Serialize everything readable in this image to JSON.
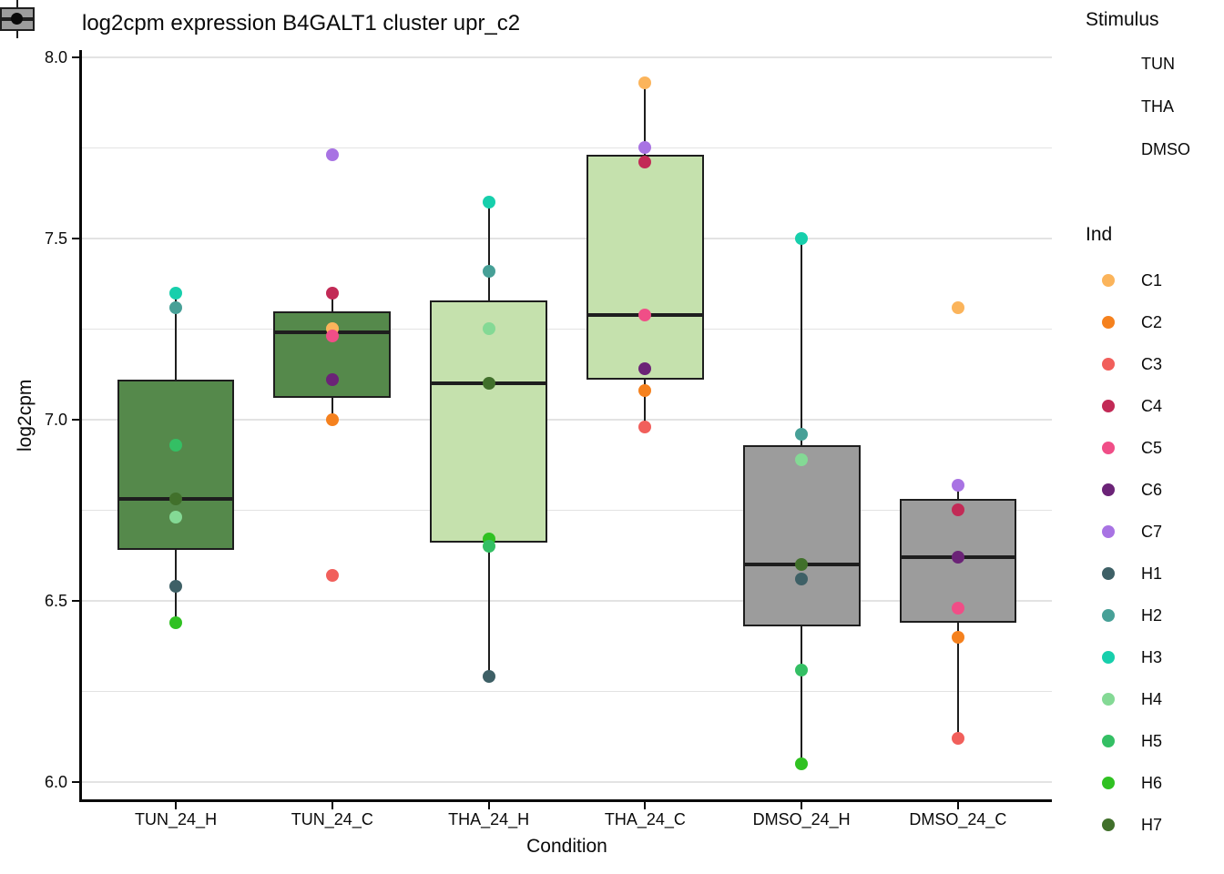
{
  "title": "log2cpm expression B4GALT1 cluster upr_c2",
  "chart_data": {
    "type": "boxplot",
    "title": "log2cpm expression B4GALT1 cluster upr_c2",
    "xlabel": "Condition",
    "ylabel": "log2cpm",
    "ylim": [
      5.95,
      8.02
    ],
    "yticks": [
      6.0,
      6.5,
      7.0,
      7.5,
      8.0
    ],
    "yticks_minor": [
      6.25,
      6.75,
      7.25,
      7.75
    ],
    "grid": "major-and-minor, light gray on white, black left/bottom axis lines",
    "legend_position": "right",
    "categories": [
      "TUN_24_H",
      "TUN_24_C",
      "THA_24_H",
      "THA_24_C",
      "DMSO_24_H",
      "DMSO_24_C"
    ],
    "groups": [
      {
        "condition": "TUN_24_H",
        "stimulus": "TUN",
        "box": {
          "whisker_low": 6.44,
          "q1": 6.64,
          "median": 6.78,
          "q3": 7.11,
          "whisker_high": 7.35
        },
        "points": [
          {
            "ind": "H3",
            "value": 7.35
          },
          {
            "ind": "H2",
            "value": 7.31
          },
          {
            "ind": "H5",
            "value": 6.93
          },
          {
            "ind": "H7",
            "value": 6.78
          },
          {
            "ind": "H4",
            "value": 6.73
          },
          {
            "ind": "H1",
            "value": 6.54
          },
          {
            "ind": "H6",
            "value": 6.44
          }
        ]
      },
      {
        "condition": "TUN_24_C",
        "stimulus": "TUN",
        "box": {
          "whisker_low": 7.0,
          "q1": 7.06,
          "median": 7.24,
          "q3": 7.3,
          "whisker_high": 7.35
        },
        "outliers": [
          "C7",
          "C3"
        ],
        "points": [
          {
            "ind": "C7",
            "value": 7.73
          },
          {
            "ind": "C4",
            "value": 7.35
          },
          {
            "ind": "C1",
            "value": 7.25
          },
          {
            "ind": "C5",
            "value": 7.23
          },
          {
            "ind": "C6",
            "value": 7.11
          },
          {
            "ind": "C2",
            "value": 7.0
          },
          {
            "ind": "C3",
            "value": 6.57
          }
        ]
      },
      {
        "condition": "THA_24_H",
        "stimulus": "THA",
        "box": {
          "whisker_low": 6.29,
          "q1": 6.66,
          "median": 7.1,
          "q3": 7.33,
          "whisker_high": 7.6
        },
        "points": [
          {
            "ind": "H3",
            "value": 7.6
          },
          {
            "ind": "H2",
            "value": 7.41
          },
          {
            "ind": "H4",
            "value": 7.25
          },
          {
            "ind": "H7",
            "value": 7.1
          },
          {
            "ind": "H6",
            "value": 6.67
          },
          {
            "ind": "H5",
            "value": 6.65
          },
          {
            "ind": "H1",
            "value": 6.29
          }
        ]
      },
      {
        "condition": "THA_24_C",
        "stimulus": "THA",
        "box": {
          "whisker_low": 6.98,
          "q1": 7.11,
          "median": 7.29,
          "q3": 7.73,
          "whisker_high": 7.93
        },
        "points": [
          {
            "ind": "C1",
            "value": 7.93
          },
          {
            "ind": "C7",
            "value": 7.75
          },
          {
            "ind": "C4",
            "value": 7.71
          },
          {
            "ind": "C5",
            "value": 7.29
          },
          {
            "ind": "C6",
            "value": 7.14
          },
          {
            "ind": "C2",
            "value": 7.08
          },
          {
            "ind": "C3",
            "value": 6.98
          }
        ]
      },
      {
        "condition": "DMSO_24_H",
        "stimulus": "DMSO",
        "box": {
          "whisker_low": 6.05,
          "q1": 6.43,
          "median": 6.6,
          "q3": 6.93,
          "whisker_high": 7.5
        },
        "points": [
          {
            "ind": "H3",
            "value": 7.5
          },
          {
            "ind": "H2",
            "value": 6.96
          },
          {
            "ind": "H4",
            "value": 6.89
          },
          {
            "ind": "H7",
            "value": 6.6
          },
          {
            "ind": "H1",
            "value": 6.56
          },
          {
            "ind": "H5",
            "value": 6.31
          },
          {
            "ind": "H6",
            "value": 6.05
          }
        ]
      },
      {
        "condition": "DMSO_24_C",
        "stimulus": "DMSO",
        "box": {
          "whisker_low": 6.12,
          "q1": 6.44,
          "median": 6.62,
          "q3": 6.78,
          "whisker_high": 6.82
        },
        "outliers": [
          "C1"
        ],
        "points": [
          {
            "ind": "C1",
            "value": 7.31
          },
          {
            "ind": "C7",
            "value": 6.82
          },
          {
            "ind": "C4",
            "value": 6.75
          },
          {
            "ind": "C6",
            "value": 6.62
          },
          {
            "ind": "C5",
            "value": 6.48
          },
          {
            "ind": "C2",
            "value": 6.4
          },
          {
            "ind": "C3",
            "value": 6.12
          }
        ]
      }
    ],
    "legend_stimulus": {
      "title": "Stimulus",
      "items": [
        {
          "label": "TUN",
          "fill": "#55894B"
        },
        {
          "label": "THA",
          "fill": "#C5E1AD"
        },
        {
          "label": "DMSO",
          "fill": "#9C9C9C"
        }
      ]
    },
    "legend_ind": {
      "title": "Ind",
      "items": [
        {
          "label": "C1",
          "color": "#FBB45B"
        },
        {
          "label": "C2",
          "color": "#F5811E"
        },
        {
          "label": "C3",
          "color": "#F15F5B"
        },
        {
          "label": "C4",
          "color": "#C22A56"
        },
        {
          "label": "C5",
          "color": "#F04E87"
        },
        {
          "label": "C6",
          "color": "#6B2377"
        },
        {
          "label": "C7",
          "color": "#A873E3"
        },
        {
          "label": "H1",
          "color": "#3E6066"
        },
        {
          "label": "H2",
          "color": "#47A097"
        },
        {
          "label": "H3",
          "color": "#17CFAC"
        },
        {
          "label": "H4",
          "color": "#84D995"
        },
        {
          "label": "H5",
          "color": "#34BF64"
        },
        {
          "label": "H6",
          "color": "#30C122"
        },
        {
          "label": "H7",
          "color": "#41702B"
        }
      ]
    }
  }
}
